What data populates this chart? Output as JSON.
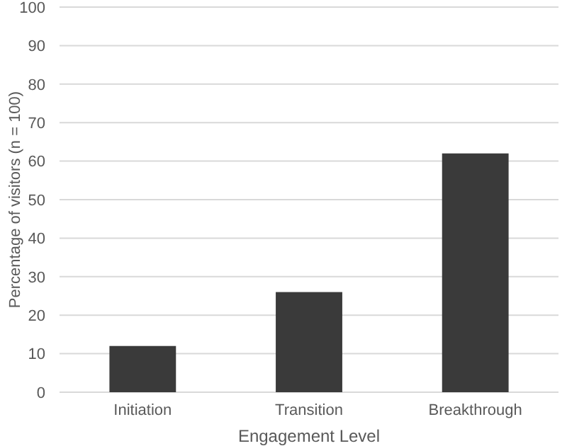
{
  "chart_data": {
    "type": "bar",
    "xlabel": "Engagement Level",
    "ylabel": "Percentage of visitors (n = 100)",
    "categories": [
      "Initiation",
      "Transition",
      "Breakthrough"
    ],
    "values": [
      12,
      26,
      62
    ],
    "color": "#3a3a3a",
    "ylim": [
      0,
      100
    ],
    "yticks": [
      0,
      10,
      20,
      30,
      40,
      50,
      60,
      70,
      80,
      90,
      100
    ],
    "grid": "y"
  }
}
